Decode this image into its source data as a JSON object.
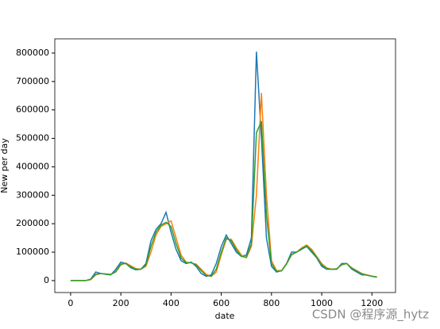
{
  "chart_data": {
    "type": "line",
    "xlabel": "date",
    "ylabel": "New per day",
    "watermark": "CSDN @程序源_hytz",
    "x": [
      0,
      20,
      40,
      60,
      80,
      100,
      120,
      140,
      160,
      180,
      200,
      220,
      240,
      260,
      280,
      300,
      320,
      340,
      360,
      380,
      400,
      420,
      440,
      460,
      480,
      500,
      520,
      540,
      560,
      580,
      600,
      620,
      640,
      660,
      680,
      700,
      720,
      740,
      760,
      780,
      800,
      820,
      840,
      860,
      880,
      900,
      920,
      940,
      960,
      980,
      1000,
      1020,
      1040,
      1060,
      1080,
      1100,
      1120,
      1140,
      1160,
      1180,
      1200,
      1220
    ],
    "series": [
      {
        "color": "#1f77b4",
        "values": [
          0,
          0,
          0,
          0,
          5000,
          30000,
          25000,
          22000,
          20000,
          40000,
          65000,
          60000,
          45000,
          38000,
          40000,
          60000,
          140000,
          180000,
          200000,
          240000,
          170000,
          110000,
          70000,
          60000,
          65000,
          50000,
          25000,
          15000,
          20000,
          60000,
          120000,
          160000,
          130000,
          100000,
          85000,
          90000,
          150000,
          805000,
          500000,
          150000,
          50000,
          30000,
          35000,
          60000,
          100000,
          100000,
          110000,
          120000,
          100000,
          80000,
          50000,
          40000,
          40000,
          40000,
          60000,
          60000,
          40000,
          30000,
          20000,
          20000,
          15000,
          12000
        ]
      },
      {
        "color": "#ff7f0e",
        "values": [
          0,
          0,
          0,
          0,
          3000,
          20000,
          25000,
          23000,
          22000,
          30000,
          55000,
          62000,
          52000,
          42000,
          40000,
          50000,
          100000,
          160000,
          190000,
          200000,
          210000,
          150000,
          90000,
          65000,
          62000,
          58000,
          40000,
          22000,
          15000,
          30000,
          90000,
          145000,
          145000,
          115000,
          90000,
          80000,
          120000,
          300000,
          660000,
          300000,
          70000,
          35000,
          35000,
          60000,
          90000,
          100000,
          115000,
          125000,
          110000,
          85000,
          60000,
          45000,
          40000,
          42000,
          55000,
          60000,
          45000,
          35000,
          25000,
          20000,
          16000,
          13000
        ]
      },
      {
        "color": "#2ca02c",
        "values": [
          0,
          0,
          0,
          0,
          4000,
          22000,
          25000,
          23000,
          21000,
          32000,
          58000,
          60000,
          48000,
          40000,
          40000,
          55000,
          120000,
          170000,
          195000,
          205000,
          190000,
          130000,
          80000,
          63000,
          63000,
          55000,
          35000,
          18000,
          15000,
          40000,
          100000,
          150000,
          140000,
          108000,
          85000,
          82000,
          130000,
          520000,
          560000,
          230000,
          60000,
          33000,
          34000,
          58000,
          92000,
          100000,
          112000,
          122000,
          105000,
          82000,
          55000,
          42000,
          40000,
          41000,
          57000,
          60000,
          43000,
          33000,
          23000,
          19000,
          15000,
          12000
        ]
      }
    ],
    "xlim": [
      -63,
      1294
    ],
    "xticks": [
      0,
      200,
      400,
      600,
      800,
      1000,
      1200
    ],
    "ylim": [
      -42000,
      850000
    ],
    "yticks": [
      0,
      100000,
      200000,
      300000,
      400000,
      500000,
      600000,
      700000,
      800000
    ]
  }
}
